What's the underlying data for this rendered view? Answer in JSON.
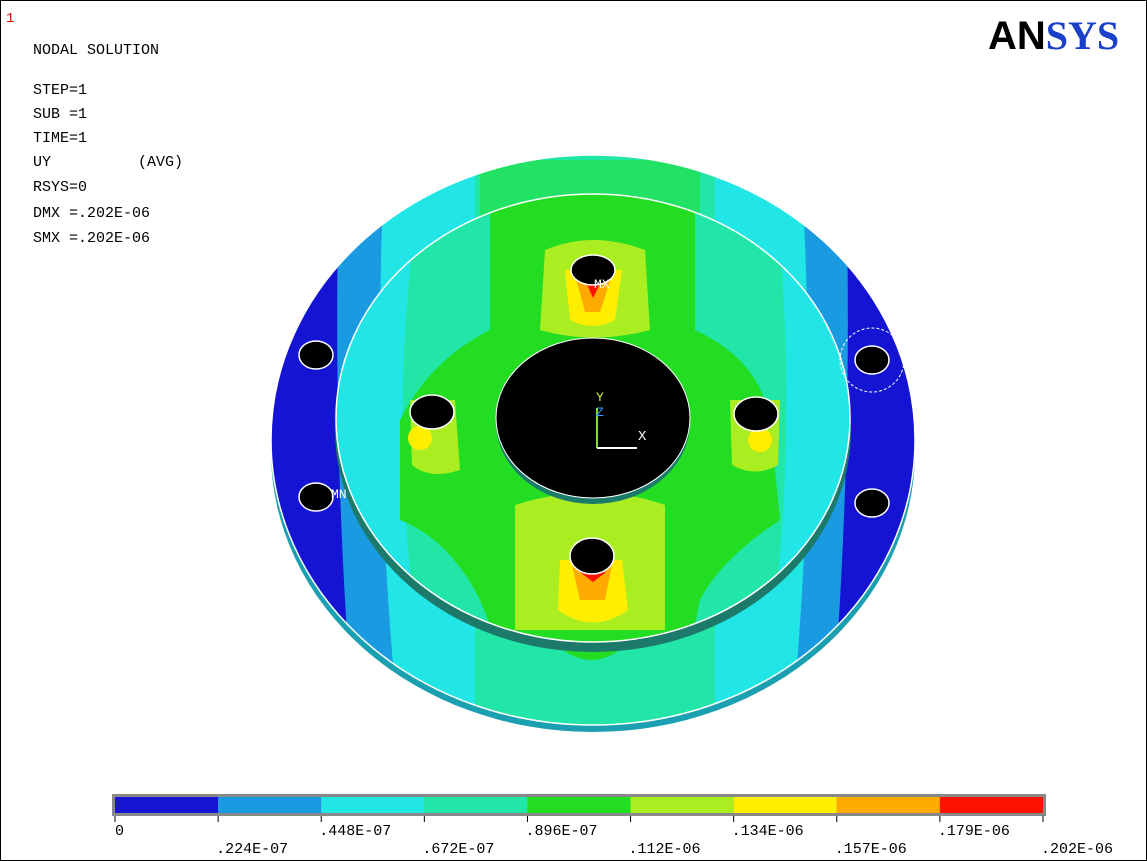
{
  "window_number": "1",
  "title": "NODAL SOLUTION",
  "info": [
    "STEP=1",
    "SUB =1",
    "TIME=1"
  ],
  "result": {
    "label": "UY",
    "option": "(AVG)"
  },
  "info2": [
    "RSYS=0",
    "DMX =.202E-06",
    "SMX =.202E-06"
  ],
  "logo": {
    "part1": "AN",
    "part2": "SYS"
  },
  "markers": {
    "max": "MX",
    "min": "MN"
  },
  "axes": {
    "y": "Y",
    "z": "Z",
    "x": "X"
  },
  "legend": {
    "labels": [
      "0",
      ".224E-07",
      ".448E-07",
      ".672E-07",
      ".896E-07",
      ".112E-06",
      ".134E-06",
      ".157E-06",
      ".179E-06",
      ".202E-06"
    ],
    "colors": [
      "#1414d2",
      "#1a9ae0",
      "#22e6e6",
      "#22e6a8",
      "#22dd22",
      "#aaee22",
      "#ffee00",
      "#ffaa00",
      "#ff1100"
    ]
  }
}
